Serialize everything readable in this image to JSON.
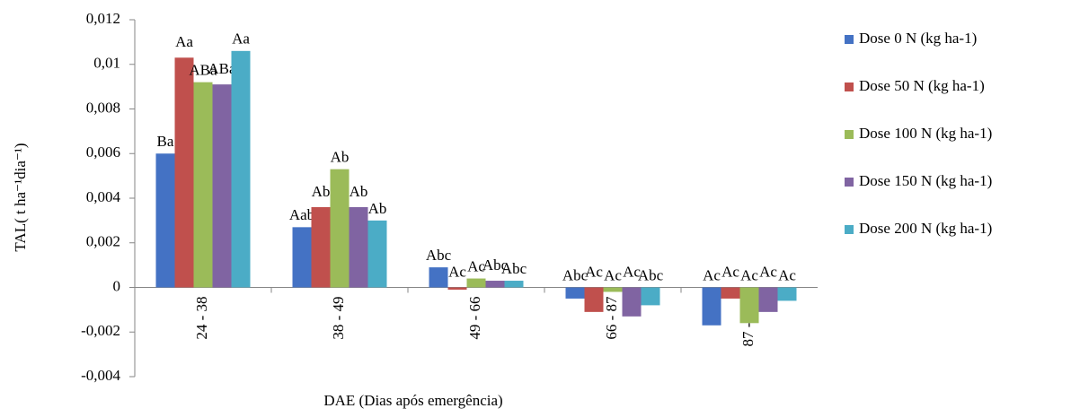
{
  "chart_data": {
    "type": "bar",
    "ylabel": "TAL( t ha⁻¹dia⁻¹)",
    "xlabel": "DAE (Dias após emergência)",
    "categories": [
      "24 - 38",
      "38 - 49",
      "49 - 66",
      "66 - 87",
      "87 - 117"
    ],
    "series": [
      {
        "name": "Dose 0 N (kg ha-1)",
        "color": "#4472c4",
        "values": [
          0.006,
          0.0027,
          0.0009,
          -0.0005,
          -0.0017
        ],
        "letters": [
          "Ba",
          "Aab",
          "Abc",
          "Abc",
          "Ac"
        ]
      },
      {
        "name": "Dose 50 N (kg ha-1)",
        "color": "#c0504d",
        "values": [
          0.0103,
          0.0036,
          -0.0001,
          -0.0011,
          -0.0005
        ],
        "letters": [
          "Aa",
          "Ab",
          "Ac",
          "Ac",
          "Ac"
        ]
      },
      {
        "name": "Dose 100 N (kg ha-1)",
        "color": "#9bbb59",
        "values": [
          0.0092,
          0.0053,
          0.0004,
          -0.0002,
          -0.0016
        ],
        "letters": [
          "ABa",
          "Ab",
          "Ac",
          "Ac",
          "Ac"
        ]
      },
      {
        "name": "Dose 150 N (kg ha-1)",
        "color": "#8064a2",
        "values": [
          0.0091,
          0.0036,
          0.0003,
          -0.0013,
          -0.0011
        ],
        "letters": [
          "ABa",
          "Ab",
          "Abc",
          "Ac",
          "Ac"
        ]
      },
      {
        "name": "Dose 200 N (kg ha-1)",
        "color": "#4bacc6",
        "values": [
          0.0106,
          0.003,
          0.0003,
          -0.0008,
          -0.0006
        ],
        "letters": [
          "Aa",
          "Ab",
          "Abc",
          "Abc",
          "Ac"
        ]
      }
    ],
    "ylim": [
      -0.004,
      0.012
    ],
    "yticks": [
      {
        "value": -0.004,
        "label": "-0,004"
      },
      {
        "value": -0.002,
        "label": "-0,002"
      },
      0,
      {
        "value": 0.002,
        "label": "0,002"
      },
      {
        "value": 0.004,
        "label": "0,004"
      },
      {
        "value": 0.006,
        "label": "0,006"
      },
      {
        "value": 0.008,
        "label": "0,008"
      },
      {
        "value": 0.01,
        "label": "0,01"
      },
      {
        "value": 0.012,
        "label": "0,012"
      }
    ],
    "legend": "right"
  }
}
